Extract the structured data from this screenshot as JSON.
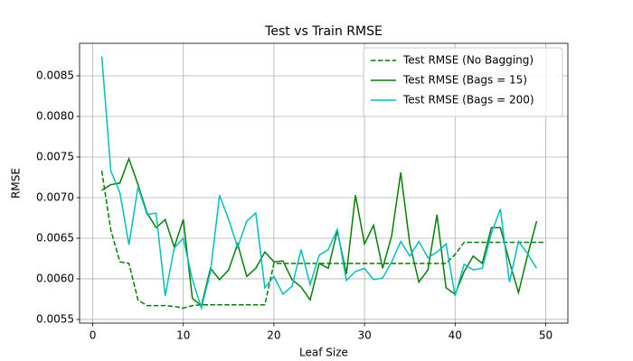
{
  "chart_data": {
    "type": "line",
    "title": "Test vs Train RMSE",
    "x_label": "Leaf Size",
    "y_label": "RMSE",
    "x": [
      1,
      2,
      3,
      4,
      5,
      6,
      7,
      8,
      9,
      10,
      11,
      12,
      13,
      14,
      15,
      16,
      17,
      18,
      19,
      20,
      21,
      22,
      23,
      24,
      25,
      26,
      27,
      28,
      29,
      30,
      31,
      32,
      33,
      34,
      35,
      36,
      37,
      38,
      39,
      40,
      41,
      42,
      43,
      44,
      45,
      46,
      47,
      48,
      49,
      50
    ],
    "series": [
      {
        "name": "Test RMSE (No Bagging)",
        "color": "#008000",
        "linestyle": "dashed",
        "values": [
          0.00733,
          0.0066,
          0.00621,
          0.00619,
          0.00574,
          0.00567,
          0.00567,
          0.00567,
          0.00566,
          0.00564,
          0.00567,
          0.00568,
          0.00568,
          0.00568,
          0.00568,
          0.00568,
          0.00568,
          0.00568,
          0.00568,
          0.00619,
          0.00619,
          0.00619,
          0.00619,
          0.00619,
          0.00619,
          0.00619,
          0.00619,
          0.00619,
          0.00619,
          0.00619,
          0.00619,
          0.00619,
          0.00619,
          0.00619,
          0.00619,
          0.00619,
          0.00619,
          0.00619,
          0.00619,
          0.0063,
          0.00645,
          0.00645,
          0.00645,
          0.00645,
          0.00645,
          0.00645,
          0.00645,
          0.00645,
          0.00645,
          0.00645
        ]
      },
      {
        "name": "Test RMSE (Bags = 15)",
        "color": "#008000",
        "linestyle": "solid",
        "values": [
          0.00709,
          0.00716,
          0.00718,
          0.00748,
          0.00716,
          0.00681,
          0.00663,
          0.00673,
          0.00639,
          0.00673,
          0.00576,
          0.00567,
          0.00613,
          0.00599,
          0.00611,
          0.00643,
          0.00603,
          0.00613,
          0.00633,
          0.00621,
          0.00622,
          0.00599,
          0.0059,
          0.00574,
          0.00619,
          0.00613,
          0.00659,
          0.00606,
          0.00703,
          0.00643,
          0.00666,
          0.00613,
          0.00653,
          0.00731,
          0.00643,
          0.00596,
          0.00611,
          0.00679,
          0.00589,
          0.00581,
          0.00609,
          0.00628,
          0.00619,
          0.00663,
          0.00663,
          0.00621,
          0.00583,
          0.00629,
          0.00671,
          null
        ]
      },
      {
        "name": "Test RMSE (Bags = 200)",
        "color": "#00bfbf",
        "linestyle": "solid",
        "values": [
          0.00874,
          0.00733,
          0.00706,
          0.00642,
          0.00713,
          0.00679,
          0.00681,
          0.00579,
          0.00638,
          0.0065,
          0.00599,
          0.00564,
          0.00609,
          0.00703,
          0.00673,
          0.00639,
          0.00671,
          0.00681,
          0.00589,
          0.00603,
          0.00581,
          0.00591,
          0.00636,
          0.00593,
          0.00629,
          0.00636,
          0.00661,
          0.00598,
          0.00609,
          0.00613,
          0.00599,
          0.00601,
          0.00621,
          0.00646,
          0.00628,
          0.00646,
          0.00626,
          0.00633,
          0.00643,
          0.00579,
          0.00618,
          0.00611,
          0.00613,
          0.00656,
          0.00686,
          0.00596,
          0.00646,
          0.00631,
          0.00613,
          null
        ]
      }
    ],
    "xlim": [
      -1.45,
      52.45
    ],
    "xticks": [
      0,
      10,
      20,
      30,
      40,
      50
    ],
    "ylim": [
      0.005455,
      0.0089
    ],
    "yticks": [
      0.0055,
      {
        "value": 0.006,
        "label": "0.0060"
      },
      0.0065,
      {
        "value": 0.007,
        "label": "0.0070"
      },
      0.0075,
      {
        "value": 0.008,
        "label": "0.0080"
      },
      0.0085
    ],
    "grid": true,
    "legend": "upper right"
  }
}
